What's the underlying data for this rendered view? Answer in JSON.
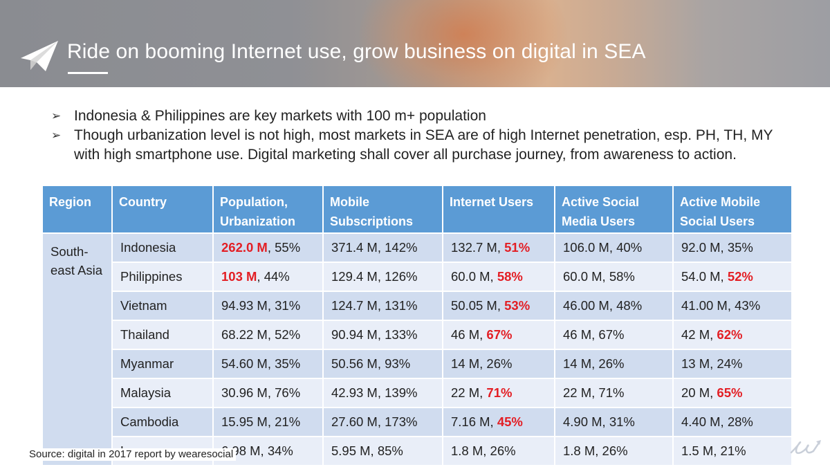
{
  "header": {
    "title": "Ride on booming Internet use, grow business on digital in SEA"
  },
  "bullets": [
    "Indonesia & Philippines are key markets with 100 m+ population",
    "Though urbanization level is not high, most markets in SEA are of high Internet penetration, esp. PH, TH, MY with high smartphone use. Digital marketing shall cover all purchase journey, from awareness to action."
  ],
  "table": {
    "headers": [
      "Region",
      "Country",
      "Population, Urbanization",
      "Mobile Subscriptions",
      "Internet Users",
      "Active Social Media Users",
      "Active Mobile Social Users"
    ],
    "region": "South-east Asia",
    "rows": [
      {
        "country": "Indonesia",
        "pop": "262.0 M",
        "pop_pct": ", 55%",
        "mobile": "371.4 M, 142%",
        "inet": "132.7 M, ",
        "inet_pct": "51%",
        "social": "106.0 M, 40%",
        "msocial": "92.0 M, 35%",
        "msocial_pct": ""
      },
      {
        "country": "Philippines",
        "pop": "103 M",
        "pop_pct": ", 44%",
        "mobile": "129.4 M, 126%",
        "inet": "60.0 M, ",
        "inet_pct": "58%",
        "social": "60.0 M, 58%",
        "msocial": "54.0 M, ",
        "msocial_pct": "52%"
      },
      {
        "country": "Vietnam",
        "pop": "",
        "pop_pct": "94.93 M, 31%",
        "mobile": "124.7 M, 131%",
        "inet": "50.05 M, ",
        "inet_pct": "53%",
        "social": "46.00 M, 48%",
        "msocial": "41.00 M, 43%",
        "msocial_pct": ""
      },
      {
        "country": "Thailand",
        "pop": "",
        "pop_pct": "68.22 M, 52%",
        "mobile": "90.94 M, 133%",
        "inet": "46 M, ",
        "inet_pct": "67%",
        "social": "46 M, 67%",
        "msocial": "42 M, ",
        "msocial_pct": "62%"
      },
      {
        "country": "Myanmar",
        "pop": "",
        "pop_pct": "54.60 M, 35%",
        "mobile": "50.56 M, 93%",
        "inet": "14 M,  26%",
        "inet_pct": "",
        "social": "14 M, 26%",
        "msocial": "13 M, 24%",
        "msocial_pct": ""
      },
      {
        "country": "Malaysia",
        "pop": "",
        "pop_pct": "30.96 M, 76%",
        "mobile": "42.93 M, 139%",
        "inet": "22 M, ",
        "inet_pct": "71%",
        "social": "22 M, 71%",
        "msocial": "20 M, ",
        "msocial_pct": "65%"
      },
      {
        "country": "Cambodia",
        "pop": "",
        "pop_pct": "15.95 M, 21%",
        "mobile": "27.60 M, 173%",
        "inet": "7.16 M, ",
        "inet_pct": "45%",
        "social": "4.90 M, 31%",
        "msocial": "4.40 M, 28%",
        "msocial_pct": ""
      },
      {
        "country": "Lao",
        "pop": "",
        "pop_pct": "6.98 M, 34%",
        "mobile": "5.95 M, 85%",
        "inet": "1.8 M, 26%",
        "inet_pct": "",
        "social": "1.8 M, 26%",
        "msocial": "1.5 M, 21%",
        "msocial_pct": ""
      }
    ]
  },
  "footer": {
    "source": "Source: digital in 2017 report by wearesocial"
  },
  "colors": {
    "header_bg": "#5b9bd5",
    "row_odd": "#d0dcef",
    "row_even": "#e9eef8",
    "highlight": "#e31e24"
  },
  "icons": {
    "title_icon": "paper-plane-icon",
    "corner_logo": "logo-mark-icon"
  }
}
